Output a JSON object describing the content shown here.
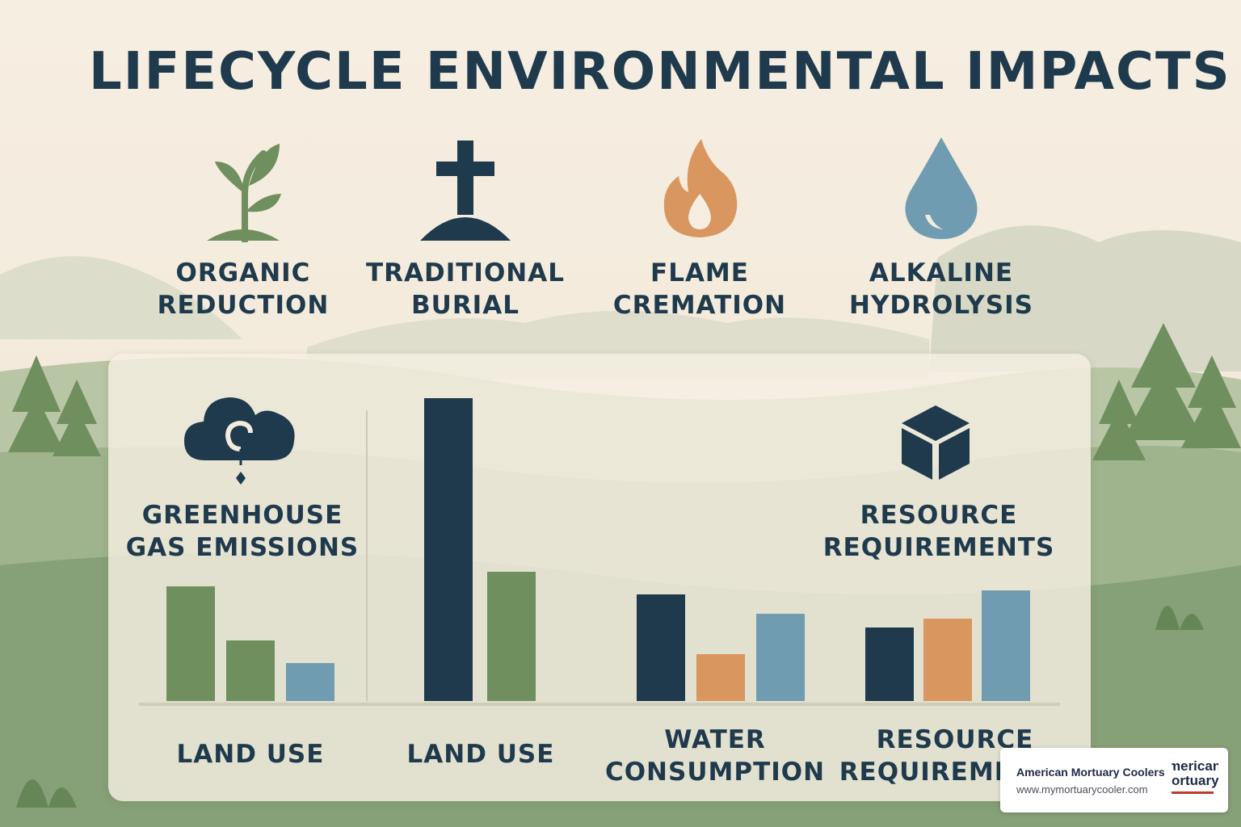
{
  "title": "LIFECYCLE ENVIRONMENTAL IMPACTS",
  "methods": [
    {
      "label_line1": "ORGANIC",
      "label_line2": "REDUCTION",
      "icon": "sprout-icon",
      "color": "#6f8f5e"
    },
    {
      "label_line1": "TRADITIONAL",
      "label_line2": "BURIAL",
      "icon": "grave-cross-icon",
      "color": "#1f3a4d"
    },
    {
      "label_line1": "FLAME",
      "label_line2": "CREMATION",
      "icon": "flame-icon",
      "color": "#d9965f"
    },
    {
      "label_line1": "ALKALINE",
      "label_line2": "HYDROLYSIS",
      "icon": "water-drop-icon",
      "color": "#6f9cb0"
    }
  ],
  "panel": {
    "greenhouse_line1": "GREENHOUSE",
    "greenhouse_line2": "GAS EMISSIONS",
    "greenhouse_icon": "cloud-emissions-icon",
    "resource_line1": "RESOURCE",
    "resource_line2": "REQUIREMENTS",
    "resource_icon": "cube-icon"
  },
  "chart_data": {
    "type": "bar",
    "title": "",
    "xlabel": "",
    "ylabel": "",
    "grid": false,
    "groups": [
      {
        "label_line1": "LAND USE",
        "label_line2": "",
        "bars": [
          {
            "value": 142,
            "color": "#6f8f5e"
          },
          {
            "value": 75,
            "color": "#6f8f5e"
          },
          {
            "value": 47,
            "color": "#6f9cb0"
          }
        ]
      },
      {
        "label_line1": "LAND USE",
        "label_line2": "",
        "bars": [
          {
            "value": 375,
            "color": "#1f3a4d"
          },
          {
            "value": 160,
            "color": "#6f8f5e"
          }
        ]
      },
      {
        "label_line1": "WATER",
        "label_line2": "CONSUMPTION",
        "bars": [
          {
            "value": 132,
            "color": "#1f3a4d"
          },
          {
            "value": 58,
            "color": "#d9965f"
          },
          {
            "value": 108,
            "color": "#6f9cb0"
          }
        ]
      },
      {
        "label_line1": "RESOURCE",
        "label_line2": "REQUIREMENTS",
        "bars": [
          {
            "value": 91,
            "color": "#1f3a4d"
          },
          {
            "value": 102,
            "color": "#d9965f"
          },
          {
            "value": 137,
            "color": "#6f9cb0"
          }
        ]
      }
    ]
  },
  "watermark": {
    "brand": "American Mortuary Coolers",
    "url": "www.mymortuarycooler.com",
    "logo_line1": "merican",
    "logo_line2": "ortuary"
  }
}
